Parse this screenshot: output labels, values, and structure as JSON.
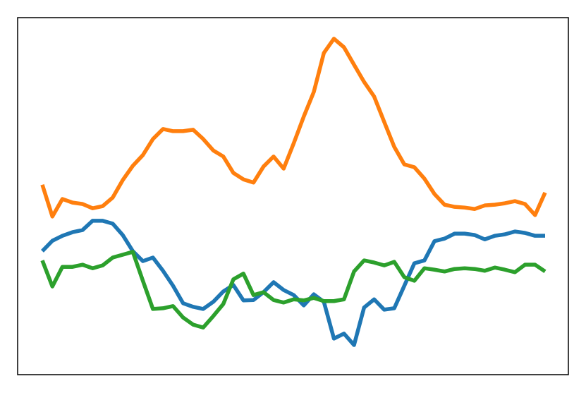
{
  "chart_data": {
    "type": "line",
    "categories": [
      null,
      null,
      null,
      null,
      null,
      null,
      null,
      null,
      null,
      null,
      null,
      null,
      null,
      null,
      null,
      null,
      null,
      null,
      null,
      null,
      null,
      null,
      null,
      null,
      null,
      null,
      null,
      null,
      null,
      null,
      null,
      null,
      null,
      null,
      null,
      null,
      null,
      null,
      null,
      null,
      null,
      null,
      null,
      null,
      null,
      null,
      null,
      null,
      null,
      null,
      null
    ],
    "ylim": [
      0,
      100
    ],
    "series": [
      {
        "color": "#1f77b4",
        "values": [
          34.6,
          37.5,
          38.9,
          39.9,
          40.5,
          43.1,
          43.1,
          42.3,
          39.1,
          34.6,
          31.8,
          32.8,
          29.1,
          24.9,
          20.0,
          19.0,
          18.4,
          20.4,
          23.3,
          25.1,
          20.8,
          20.9,
          23.1,
          25.9,
          23.7,
          22.3,
          19.4,
          22.5,
          20.4,
          10.1,
          11.5,
          8.3,
          18.8,
          21.1,
          18.2,
          18.6,
          24.9,
          31.2,
          32.0,
          37.4,
          38.1,
          39.5,
          39.5,
          39.1,
          37.9,
          38.9,
          39.3,
          40.1,
          39.7,
          38.9,
          38.9
        ]
      },
      {
        "color": "#ff7f0e",
        "values": [
          53.2,
          44.3,
          49.2,
          48.2,
          47.8,
          46.6,
          47.2,
          49.6,
          54.5,
          58.5,
          61.5,
          66.0,
          68.8,
          68.2,
          68.2,
          68.6,
          66.0,
          62.8,
          61.1,
          56.5,
          54.7,
          53.8,
          58.3,
          61.1,
          57.7,
          64.8,
          72.3,
          79.2,
          90.1,
          94.1,
          91.7,
          86.8,
          82.0,
          77.9,
          70.8,
          63.8,
          58.9,
          58.1,
          54.9,
          50.6,
          47.6,
          47.0,
          46.8,
          46.4,
          47.4,
          47.6,
          48.0,
          48.6,
          47.8,
          44.7,
          51.0
        ]
      },
      {
        "color": "#2ca02c",
        "values": [
          32.0,
          24.7,
          30.2,
          30.2,
          30.8,
          29.8,
          30.6,
          32.8,
          33.6,
          34.4,
          26.3,
          18.4,
          18.6,
          19.2,
          16.0,
          14.0,
          13.2,
          16.4,
          19.8,
          26.7,
          28.3,
          22.3,
          23.1,
          20.9,
          20.2,
          21.1,
          20.8,
          21.5,
          20.6,
          20.6,
          21.1,
          28.9,
          32.0,
          31.4,
          30.6,
          31.6,
          27.3,
          26.3,
          29.8,
          29.4,
          28.9,
          29.6,
          29.8,
          29.6,
          29.1,
          30.0,
          29.4,
          28.7,
          30.8,
          30.8,
          28.9
        ]
      }
    ]
  }
}
